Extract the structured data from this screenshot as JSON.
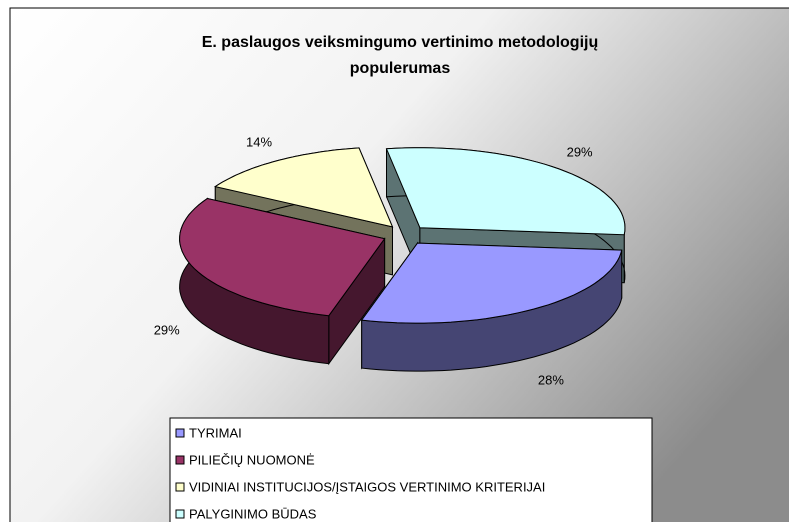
{
  "chart_data": {
    "type": "pie3d",
    "title": "E. paslaugos veiksmingumo vertinimo metodologijų populerumas",
    "categories": [
      "TYRIMAI",
      "PILIEČIŲ NUOMONĖ",
      "VIDINIAI INSTITUCIJOS/ĮSTAIGOS VERTINIMO KRITERIJAI",
      "PALYGINIMO BŪDAS"
    ],
    "values": [
      28,
      29,
      14,
      29
    ],
    "value_labels": [
      "28%",
      "29%",
      "14%",
      "29%"
    ],
    "colors": [
      "#9999ff",
      "#993366",
      "#ffffcc",
      "#ccffff"
    ],
    "legend": "bottom"
  }
}
